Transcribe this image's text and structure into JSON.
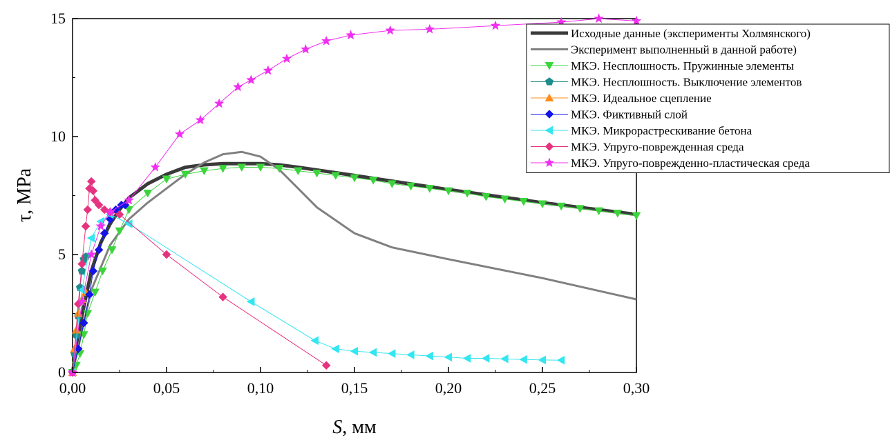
{
  "chart_data": {
    "type": "line",
    "xlabel_var": "S",
    "xlabel_unit": ", мм",
    "ylabel": "τ, MPa",
    "xlim": [
      0,
      0.3
    ],
    "ylim": [
      0,
      15
    ],
    "x_ticks": [
      0,
      0.05,
      0.1,
      0.15,
      0.2,
      0.25,
      0.3
    ],
    "x_tick_labels": [
      "0,00",
      "0,05",
      "0,10",
      "0,15",
      "0,20",
      "0,25",
      "0,30"
    ],
    "y_ticks": [
      0,
      5,
      10,
      15
    ],
    "y_tick_labels": [
      "0",
      "5",
      "10",
      "15"
    ],
    "legend_position": "top-right",
    "grid": false,
    "series": [
      {
        "name": "Исходные данные (эксперименты Холмянского)",
        "color": "#3a3a3a",
        "marker": "none",
        "width": 5,
        "x": [
          0,
          0.005,
          0.01,
          0.015,
          0.02,
          0.025,
          0.03,
          0.04,
          0.05,
          0.06,
          0.07,
          0.08,
          0.09,
          0.1,
          0.11,
          0.12,
          0.15,
          0.2,
          0.25,
          0.3
        ],
        "y": [
          0,
          2.4,
          4.3,
          5.5,
          6.3,
          6.9,
          7.4,
          8.0,
          8.4,
          8.7,
          8.8,
          8.85,
          8.85,
          8.85,
          8.8,
          8.7,
          8.35,
          7.75,
          7.2,
          6.7
        ]
      },
      {
        "name": "Эксперимент выполненный в данной работе)",
        "color": "#808080",
        "marker": "none",
        "width": 3,
        "x": [
          0,
          0.01,
          0.02,
          0.03,
          0.04,
          0.05,
          0.06,
          0.07,
          0.08,
          0.09,
          0.1,
          0.11,
          0.12,
          0.13,
          0.15,
          0.17,
          0.2,
          0.25,
          0.3
        ],
        "y": [
          0,
          3.5,
          5.4,
          6.5,
          7.2,
          7.8,
          8.4,
          8.9,
          9.25,
          9.35,
          9.15,
          8.6,
          7.8,
          7.0,
          5.9,
          5.3,
          4.8,
          4.0,
          3.1
        ]
      },
      {
        "name": "МКЭ. Несплошность. Пружинные элементы",
        "color": "#3cd43c",
        "marker": "triangle-down",
        "width": 1,
        "x": [
          0,
          0.002,
          0.004,
          0.006,
          0.008,
          0.012,
          0.016,
          0.021,
          0.025,
          0.03,
          0.04,
          0.05,
          0.06,
          0.07,
          0.08,
          0.09,
          0.1,
          0.11,
          0.12,
          0.13,
          0.14,
          0.15,
          0.16,
          0.17,
          0.18,
          0.19,
          0.2,
          0.21,
          0.22,
          0.23,
          0.24,
          0.25,
          0.26,
          0.27,
          0.28,
          0.29,
          0.3
        ],
        "y": [
          0,
          0.3,
          0.8,
          1.6,
          2.5,
          3.4,
          4.3,
          5.2,
          6.0,
          6.9,
          7.6,
          8.2,
          8.4,
          8.55,
          8.65,
          8.7,
          8.7,
          8.65,
          8.55,
          8.45,
          8.35,
          8.25,
          8.15,
          8.0,
          7.9,
          7.8,
          7.7,
          7.6,
          7.45,
          7.35,
          7.25,
          7.15,
          7.05,
          6.95,
          6.85,
          6.75,
          6.65
        ]
      },
      {
        "name": "МКЭ. Несплошность. Выключение элементов",
        "color": "#1e8c8c",
        "marker": "pentagon",
        "width": 1,
        "x": [
          0,
          0.001,
          0.002,
          0.003,
          0.004,
          0.005,
          0.006,
          0.007
        ],
        "y": [
          0,
          0.8,
          1.6,
          2.4,
          3.6,
          4.3,
          4.8,
          4.9
        ]
      },
      {
        "name": "МКЭ. Идеальное сцепление",
        "color": "#ff8c1a",
        "marker": "triangle-up",
        "width": 1,
        "x": [
          0,
          0.001,
          0.002,
          0.003,
          0.005,
          0.007
        ],
        "y": [
          0,
          1.0,
          1.8,
          2.5,
          3.1,
          3.4
        ]
      },
      {
        "name": "МКЭ. Фиктивный слой",
        "color": "#1414e6",
        "marker": "diamond",
        "width": 1,
        "x": [
          0,
          0.003,
          0.006,
          0.009,
          0.011,
          0.014,
          0.017,
          0.02,
          0.023,
          0.026,
          0.028
        ],
        "y": [
          0,
          1.0,
          2.1,
          3.3,
          4.3,
          5.2,
          5.9,
          6.5,
          6.9,
          7.1,
          7.1
        ]
      },
      {
        "name": "МКЭ. Микрорастрескивание бетона",
        "color": "#33e6f0",
        "marker": "triangle-left",
        "width": 1,
        "x": [
          0,
          0.005,
          0.01,
          0.015,
          0.02,
          0.03,
          0.095,
          0.129,
          0.14,
          0.15,
          0.16,
          0.17,
          0.18,
          0.19,
          0.2,
          0.21,
          0.22,
          0.23,
          0.24,
          0.25,
          0.26
        ],
        "y": [
          0,
          3.5,
          5.7,
          6.4,
          6.7,
          6.3,
          3.0,
          1.35,
          1.0,
          0.9,
          0.85,
          0.8,
          0.75,
          0.7,
          0.65,
          0.6,
          0.6,
          0.58,
          0.55,
          0.53,
          0.52
        ]
      },
      {
        "name": "МКЭ. Упруго-поврежденная среда",
        "color": "#e6337f",
        "marker": "diamond",
        "width": 1,
        "x": [
          0,
          0.003,
          0.005,
          0.007,
          0.008,
          0.009,
          0.01,
          0.011,
          0.012,
          0.014,
          0.017,
          0.02,
          0.025,
          0.05,
          0.08,
          0.135
        ],
        "y": [
          0,
          2.9,
          4.6,
          6.2,
          6.9,
          7.8,
          8.1,
          7.7,
          7.3,
          7.1,
          6.9,
          6.8,
          6.7,
          5.0,
          3.2,
          0.3
        ]
      },
      {
        "name": "МКЭ. Упруго-поврежденно-пластическая среда",
        "color": "#f02ef0",
        "marker": "star",
        "width": 1,
        "x": [
          0,
          0.005,
          0.01,
          0.015,
          0.02,
          0.03,
          0.044,
          0.057,
          0.068,
          0.078,
          0.088,
          0.095,
          0.104,
          0.114,
          0.124,
          0.135,
          0.148,
          0.169,
          0.19,
          0.225,
          0.26,
          0.28,
          0.3
        ],
        "y": [
          0,
          3.0,
          5.0,
          6.2,
          6.8,
          7.3,
          8.7,
          10.1,
          10.7,
          11.4,
          12.1,
          12.4,
          12.8,
          13.3,
          13.7,
          14.05,
          14.3,
          14.5,
          14.55,
          14.7,
          14.85,
          15.0,
          14.9
        ]
      }
    ]
  }
}
